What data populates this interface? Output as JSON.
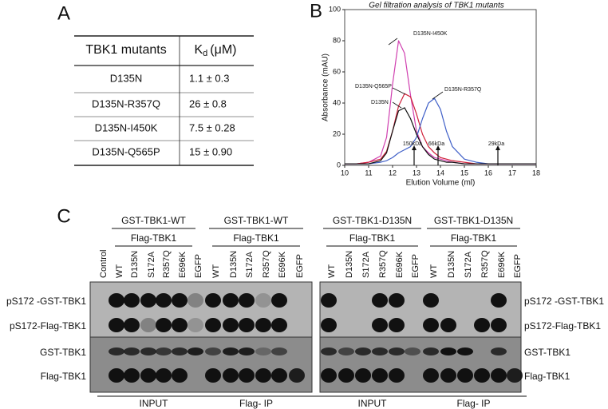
{
  "panel_a": {
    "label": "A",
    "header": {
      "mutants": "TBK1 mutants",
      "kd_symbol": "K",
      "kd_subscript": "d",
      "kd_unit": "(μM)"
    },
    "rows": [
      [
        "D135N",
        "1.1 ± 0.3"
      ],
      [
        "D135N-R357Q",
        "26 ± 0.8"
      ],
      [
        "D135N-I450K",
        "7.5 ± 0.28"
      ],
      [
        "D135N-Q565P",
        "15 ± 0.90"
      ]
    ]
  },
  "chart_data": {
    "type": "line",
    "panel_label": "B",
    "title": "Gel filtration analysis of TBK1 mutants",
    "x_label": "Elution Volume (ml)",
    "y_label": "Absorbance (mAU)",
    "xlim": [
      10,
      18
    ],
    "xticks": [
      10,
      11,
      12,
      13,
      14,
      15,
      16,
      17,
      18
    ],
    "ylim": [
      0,
      100
    ],
    "yticks": [
      0,
      20,
      40,
      60,
      80,
      100
    ],
    "x": [
      10,
      10.5,
      11,
      11.5,
      11.75,
      12,
      12.25,
      12.5,
      12.75,
      13,
      13.25,
      13.5,
      13.75,
      14,
      14.25,
      14.5,
      15,
      15.5,
      16,
      17,
      18
    ],
    "series": [
      {
        "name": "D135N-I450K",
        "color": "#d040b0",
        "values": [
          1,
          1,
          2,
          6,
          18,
          52,
          80,
          72,
          45,
          22,
          12,
          8,
          5,
          4,
          3,
          2,
          1,
          1,
          1,
          1,
          1
        ]
      },
      {
        "name": "D135N-Q565P",
        "color": "#d0203a",
        "values": [
          1,
          1,
          2,
          4,
          9,
          22,
          38,
          46,
          44,
          33,
          20,
          12,
          8,
          5,
          4,
          3,
          2,
          1,
          1,
          1,
          1
        ]
      },
      {
        "name": "D135N-R357Q",
        "color": "#4060c8",
        "values": [
          1,
          1,
          1,
          2,
          3,
          5,
          8,
          10,
          12,
          18,
          30,
          40,
          43,
          36,
          22,
          12,
          4,
          2,
          1,
          1,
          1
        ]
      },
      {
        "name": "D135N",
        "color": "#111111",
        "values": [
          1,
          1,
          1,
          3,
          8,
          22,
          35,
          37,
          30,
          20,
          12,
          7,
          4,
          3,
          2,
          2,
          1,
          1,
          1,
          1,
          1
        ]
      }
    ],
    "markers": [
      {
        "label": "150kDa",
        "x": 12.9
      },
      {
        "label": "66kDa",
        "x": 13.9
      },
      {
        "label": "29kDa",
        "x": 16.4
      }
    ]
  },
  "panel_c": {
    "label": "C",
    "groups": [
      "GST-TBK1-WT",
      "GST-TBK1-WT",
      "GST-TBK1-D135N",
      "GST-TBK1-D135N"
    ],
    "subgroups": [
      "Flag-TBK1",
      "Flag-TBK1",
      "Flag-TBK1",
      "Flag-TBK1"
    ],
    "left_lanes": [
      "Control",
      "WT",
      "D135N",
      "S172A",
      "R357Q",
      "E696K",
      "EGFP",
      "WT",
      "D135N",
      "S172A",
      "R357Q",
      "E696K",
      "EGFP"
    ],
    "right_lanes": [
      "WT",
      "D135N",
      "S172A",
      "R357Q",
      "E696K",
      "EGFP",
      "WT",
      "D135N",
      "S172A",
      "R357Q",
      "E696K",
      "EGFP"
    ],
    "left_rows": [
      "pS172 -GST-TBK1",
      "pS172-Flag-TBK1",
      "GST-TBK1",
      "Flag-TBK1"
    ],
    "right_rows": [
      "pS172 -GST-TBK1",
      "pS172-Flag-TBK1",
      "GST-TBK1",
      "Flag-TBK1"
    ],
    "footers": [
      "INPUT",
      "Flag- IP",
      "INPUT",
      "Flag- IP"
    ]
  }
}
